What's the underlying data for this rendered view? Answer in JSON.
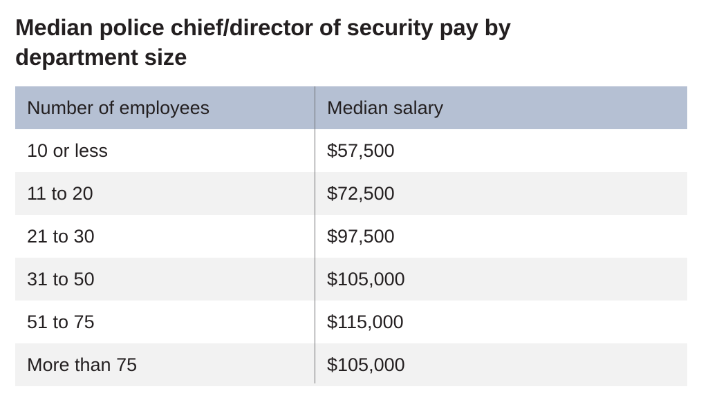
{
  "title": "Median police chief/director of security pay by department size",
  "chart_data": {
    "type": "table",
    "title": "Median police chief/director of security pay by department size",
    "columns": [
      "Number of employees",
      "Median salary"
    ],
    "rows": [
      [
        "10 or less",
        "$57,500"
      ],
      [
        "11 to 20",
        "$72,500"
      ],
      [
        "21 to 30",
        "$97,500"
      ],
      [
        "31 to 50",
        "$105,000"
      ],
      [
        "51 to 75",
        "$115,000"
      ],
      [
        "More than 75",
        "$105,000"
      ]
    ]
  },
  "colors": {
    "header_background": "#b5c0d3",
    "alt_row_background": "#f2f2f2",
    "divider": "#6d6e71",
    "text": "#231f20"
  }
}
